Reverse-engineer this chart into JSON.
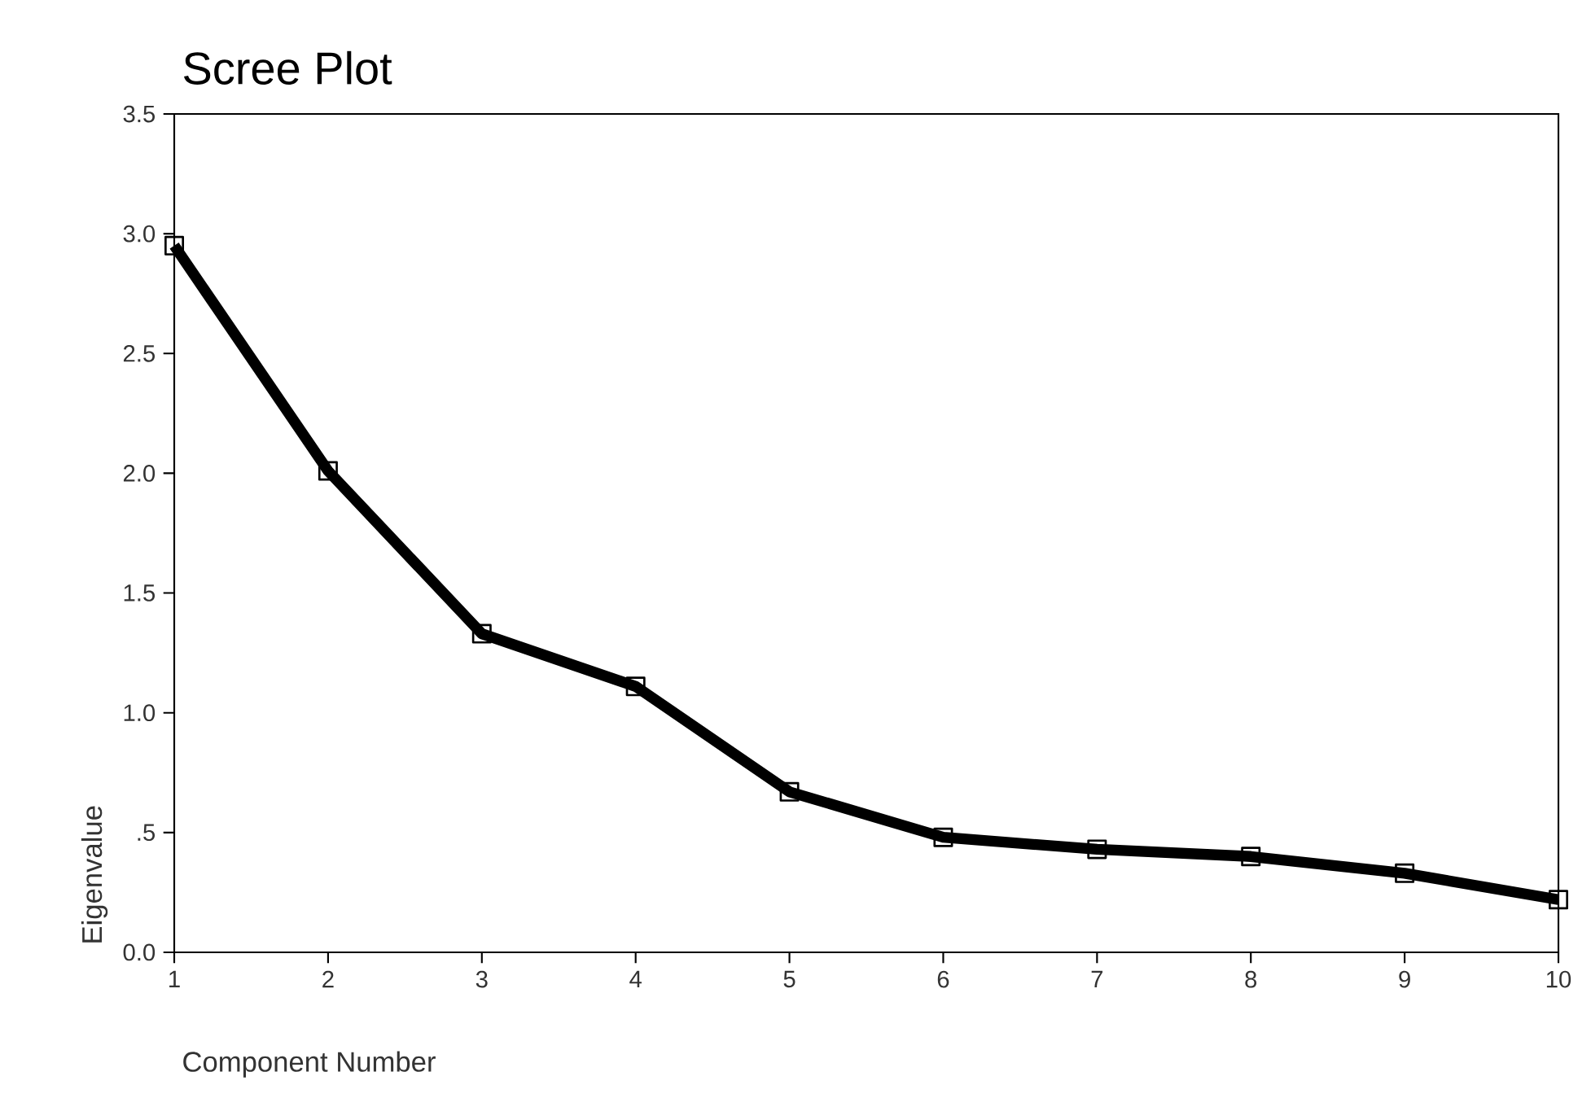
{
  "chart_data": {
    "type": "line",
    "title": "Scree Plot",
    "xlabel": "Component Number",
    "ylabel": "Eigenvalue",
    "x": [
      1,
      2,
      3,
      4,
      5,
      6,
      7,
      8,
      9,
      10
    ],
    "values": [
      2.95,
      2.01,
      1.33,
      1.11,
      0.67,
      0.48,
      0.43,
      0.4,
      0.33,
      0.22
    ],
    "color": "#000000",
    "marker": "square",
    "xlim": [
      1,
      10
    ],
    "xticks": [
      1,
      2,
      3,
      4,
      5,
      6,
      7,
      8,
      9,
      10
    ],
    "ylim": [
      0,
      3.5
    ],
    "yticks": [
      {
        "value": 0,
        "label": "0.0"
      },
      {
        "value": 0.5,
        "label": ".5"
      },
      {
        "value": 1,
        "label": "1.0"
      },
      {
        "value": 1.5,
        "label": "1.5"
      },
      {
        "value": 2,
        "label": "2.0"
      },
      {
        "value": 2.5,
        "label": "2.5"
      },
      {
        "value": 3,
        "label": "3.0"
      },
      {
        "value": 3.5,
        "label": "3.5"
      }
    ]
  }
}
